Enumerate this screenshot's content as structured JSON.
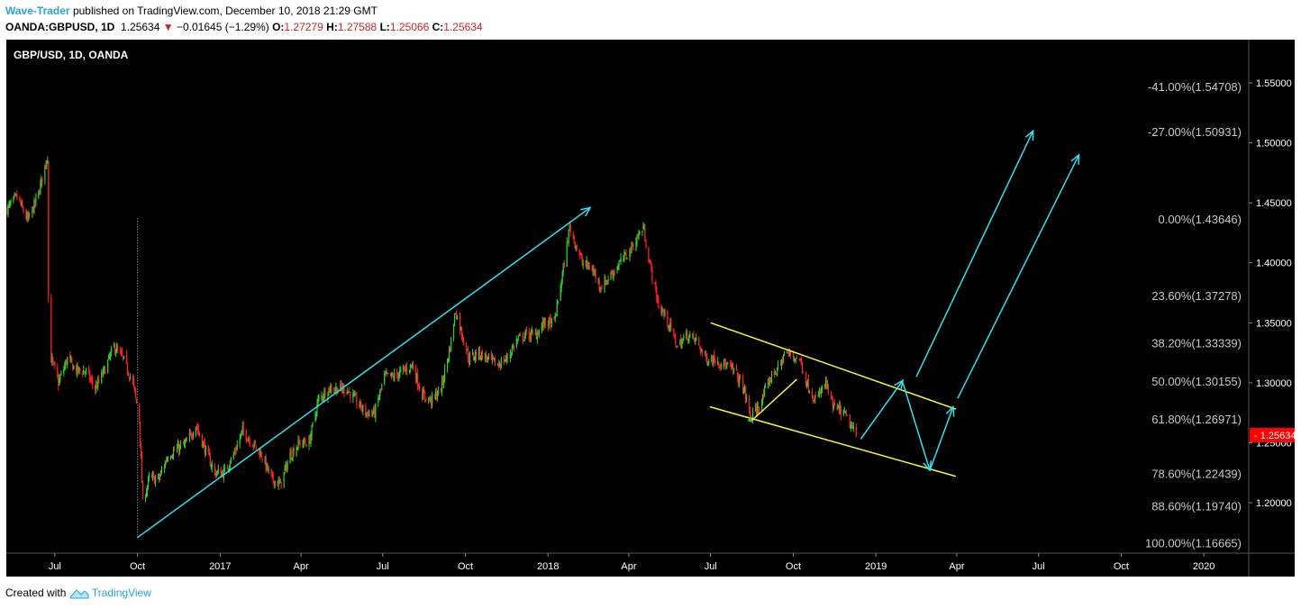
{
  "header": {
    "author": "Wave-Trader",
    "published": "published on TradingView.com, December 10, 2018 21:29 GMT",
    "symbol": "OANDA:GBPUSD, 1D",
    "last": "1.25634",
    "change": "−0.01645 (−1.29%)",
    "o_label": "O:",
    "o_value": "1.27279",
    "h_label": "H:",
    "h_value": "1.27588",
    "l_label": "L:",
    "l_value": "1.25066",
    "c_label": "C:",
    "c_value": "1.25634"
  },
  "footer": {
    "created_with": "Created with",
    "brand": "TradingView"
  },
  "colors": {
    "up": "#32cd32",
    "down": "#ff2222",
    "cyan": "#33e0f0",
    "yellow": "#f5f542",
    "fib": "#c8c8c8",
    "price_tag": "#ff0000",
    "background": "#000000"
  },
  "chart_data": {
    "type": "line",
    "title": "GBP/USD, 1D, OANDA",
    "x_axis": {
      "ticks": [
        "Jul",
        "Oct",
        "2017",
        "Apr",
        "Jul",
        "Oct",
        "2018",
        "Apr",
        "Jul",
        "Oct",
        "2019",
        "Apr",
        "Jul",
        "Oct",
        "2020"
      ],
      "tick_dates": [
        "2016-07-01",
        "2016-10-01",
        "2017-01-01",
        "2017-04-01",
        "2017-07-01",
        "2017-10-01",
        "2018-01-01",
        "2018-04-01",
        "2018-07-01",
        "2018-10-01",
        "2019-01-01",
        "2019-04-01",
        "2019-07-01",
        "2019-10-01",
        "2020-01-01"
      ],
      "range": [
        "2016-05-08",
        "2020-02-20"
      ]
    },
    "y_axis": {
      "ticks": [
        "1.55000",
        "1.50000",
        "1.45000",
        "1.40000",
        "1.35000",
        "1.30000",
        "1.25000",
        "1.20000"
      ],
      "range": [
        1.158,
        1.586
      ]
    },
    "last_price": "1.25634",
    "series": [
      {
        "x": [
          "2016-05-09",
          "2016-05-20",
          "2016-06-01",
          "2016-06-12",
          "2016-06-23",
          "2016-06-24",
          "2016-06-27",
          "2016-07-05",
          "2016-07-15",
          "2016-07-25",
          "2016-08-04",
          "2016-08-15",
          "2016-08-25",
          "2016-09-05",
          "2016-09-15",
          "2016-09-26",
          "2016-10-03",
          "2016-10-07",
          "2016-10-14",
          "2016-10-25",
          "2016-11-04",
          "2016-11-15",
          "2016-11-25",
          "2016-12-05",
          "2016-12-15",
          "2016-12-26",
          "2017-01-05",
          "2017-01-16",
          "2017-01-26",
          "2017-02-06",
          "2017-02-16",
          "2017-02-27",
          "2017-03-09",
          "2017-03-20",
          "2017-03-30",
          "2017-04-10",
          "2017-04-20",
          "2017-05-01",
          "2017-05-11",
          "2017-05-22",
          "2017-06-01",
          "2017-06-12",
          "2017-06-22",
          "2017-07-03",
          "2017-07-13",
          "2017-07-24",
          "2017-08-03",
          "2017-08-14",
          "2017-08-24",
          "2017-09-04",
          "2017-09-14",
          "2017-09-20",
          "2017-10-05",
          "2017-10-16",
          "2017-10-26",
          "2017-11-06",
          "2017-11-16",
          "2017-11-27",
          "2017-12-07",
          "2017-12-18",
          "2017-12-28",
          "2018-01-08",
          "2018-01-18",
          "2018-01-25",
          "2018-02-08",
          "2018-02-19",
          "2018-03-01",
          "2018-03-12",
          "2018-03-22",
          "2018-04-02",
          "2018-04-17",
          "2018-04-24",
          "2018-05-04",
          "2018-05-15",
          "2018-05-25",
          "2018-06-05",
          "2018-06-15",
          "2018-06-26",
          "2018-07-06",
          "2018-07-17",
          "2018-07-27",
          "2018-08-07",
          "2018-08-15",
          "2018-08-27",
          "2018-09-06",
          "2018-09-17",
          "2018-09-21",
          "2018-10-08",
          "2018-10-16",
          "2018-10-26",
          "2018-11-06",
          "2018-11-14",
          "2018-11-26",
          "2018-12-10"
        ],
        "values": [
          1.445,
          1.455,
          1.435,
          1.455,
          1.49,
          1.37,
          1.32,
          1.3,
          1.32,
          1.31,
          1.31,
          1.295,
          1.31,
          1.33,
          1.32,
          1.3,
          1.27,
          1.2,
          1.22,
          1.22,
          1.24,
          1.245,
          1.25,
          1.265,
          1.245,
          1.225,
          1.225,
          1.24,
          1.26,
          1.25,
          1.24,
          1.22,
          1.215,
          1.24,
          1.25,
          1.25,
          1.285,
          1.295,
          1.295,
          1.295,
          1.285,
          1.275,
          1.275,
          1.305,
          1.305,
          1.31,
          1.315,
          1.29,
          1.285,
          1.295,
          1.33,
          1.36,
          1.32,
          1.325,
          1.32,
          1.315,
          1.32,
          1.335,
          1.34,
          1.34,
          1.35,
          1.35,
          1.395,
          1.43,
          1.4,
          1.395,
          1.38,
          1.39,
          1.4,
          1.41,
          1.43,
          1.4,
          1.365,
          1.35,
          1.33,
          1.34,
          1.335,
          1.32,
          1.32,
          1.315,
          1.31,
          1.295,
          1.27,
          1.285,
          1.305,
          1.315,
          1.325,
          1.32,
          1.3,
          1.285,
          1.3,
          1.28,
          1.275,
          1.256
        ]
      }
    ],
    "fib_levels": [
      {
        "label": "-41.00%(1.54708)",
        "value": 1.54708
      },
      {
        "label": "-27.00%(1.50931)",
        "value": 1.50931
      },
      {
        "label": "0.00%(1.43646)",
        "value": 1.43646
      },
      {
        "label": "23.60%(1.37278)",
        "value": 1.37278
      },
      {
        "label": "38.20%(1.33339)",
        "value": 1.33339
      },
      {
        "label": "50.00%(1.30155)",
        "value": 1.30155
      },
      {
        "label": "61.80%(1.26971)",
        "value": 1.26971
      },
      {
        "label": "78.60%(1.22439)",
        "value": 1.22439
      },
      {
        "label": "88.60%(1.19740)",
        "value": 1.1974
      },
      {
        "label": "100.00%(1.16665)",
        "value": 1.16665
      }
    ],
    "drawings": {
      "arrows": [
        {
          "color": "cyan",
          "from": {
            "x": "2016-10-01",
            "y": 1.171
          },
          "to": {
            "x": "2018-02-17",
            "y": 1.446
          }
        },
        {
          "color": "cyan",
          "from": {
            "x": "2019-02-15",
            "y": 1.305
          },
          "to": {
            "x": "2019-06-25",
            "y": 1.51
          }
        },
        {
          "color": "cyan",
          "from": {
            "x": "2019-04-02",
            "y": 1.287
          },
          "to": {
            "x": "2019-08-15",
            "y": 1.49
          }
        },
        {
          "color": "cyan",
          "from": {
            "x": "2018-12-15",
            "y": 1.253
          },
          "to": {
            "x": "2019-01-31",
            "y": 1.302
          }
        },
        {
          "color": "cyan",
          "from": {
            "x": "2019-01-31",
            "y": 1.3
          },
          "to": {
            "x": "2019-03-02",
            "y": 1.227
          }
        },
        {
          "color": "cyan",
          "from": {
            "x": "2019-03-02",
            "y": 1.227
          },
          "to": {
            "x": "2019-03-28",
            "y": 1.28
          }
        }
      ],
      "lines": [
        {
          "color": "yellow",
          "from": {
            "x": "2018-07-01",
            "y": 1.35
          },
          "to": {
            "x": "2019-03-31",
            "y": 1.278
          }
        },
        {
          "color": "yellow",
          "from": {
            "x": "2018-06-30",
            "y": 1.28
          },
          "to": {
            "x": "2019-03-31",
            "y": 1.222
          }
        },
        {
          "color": "yellow",
          "from": {
            "x": "2018-08-15",
            "y": 1.268
          },
          "to": {
            "x": "2018-10-05",
            "y": 1.303
          }
        }
      ]
    }
  }
}
